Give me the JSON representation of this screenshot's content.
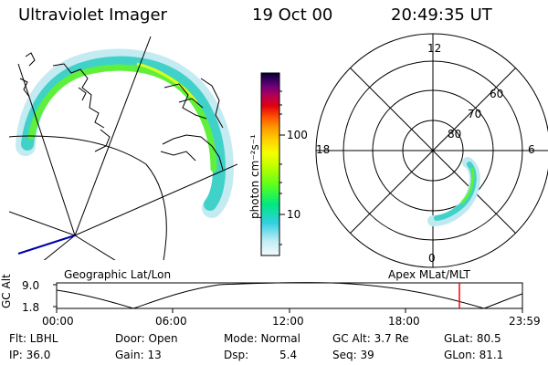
{
  "header": {
    "instrument": "Ultraviolet Imager",
    "date": "19 Oct 00",
    "time": "20:49:35 UT"
  },
  "left_panel": {
    "caption": "Geographic Lat/Lon"
  },
  "right_panel": {
    "caption": "Apex MLat/MLT",
    "mlt_labels": {
      "top": "12",
      "left": "18",
      "right": "6",
      "bottom": "0"
    },
    "lat_labels": [
      "60",
      "70",
      "80"
    ]
  },
  "colorbar": {
    "label": "photon cm⁻²s⁻¹",
    "ticks": [
      "100",
      "10"
    ],
    "colors": [
      "#000040",
      "#3a0060",
      "#7a007a",
      "#b0005a",
      "#e00010",
      "#ff5000",
      "#ff9a00",
      "#ffd200",
      "#f6ff00",
      "#b8ff00",
      "#55ff20",
      "#00e880",
      "#30d0e0",
      "#a0e8f0",
      "#e8f8fc"
    ]
  },
  "altitude_plot": {
    "ylabel": "GC Alt",
    "ytick_top": "9.0",
    "ytick_bottom": "1.8",
    "xticks": [
      "00:00",
      "06:00",
      "12:00",
      "18:00",
      "23:59"
    ],
    "cursor_color": "#ff0000"
  },
  "info": {
    "flt": "Flt: LBHL",
    "door": "Door: Open",
    "mode": "Mode: Normal",
    "gcalt": "GC Alt: 3.7 Re",
    "glat": "GLat:  80.5",
    "ip": "IP: 36.0",
    "gain": "Gain: 13",
    "dsp_label": "Dsp:",
    "dsp_value": "5.4",
    "seq": "Seq: 39",
    "glon": "GLon:  81.1"
  }
}
